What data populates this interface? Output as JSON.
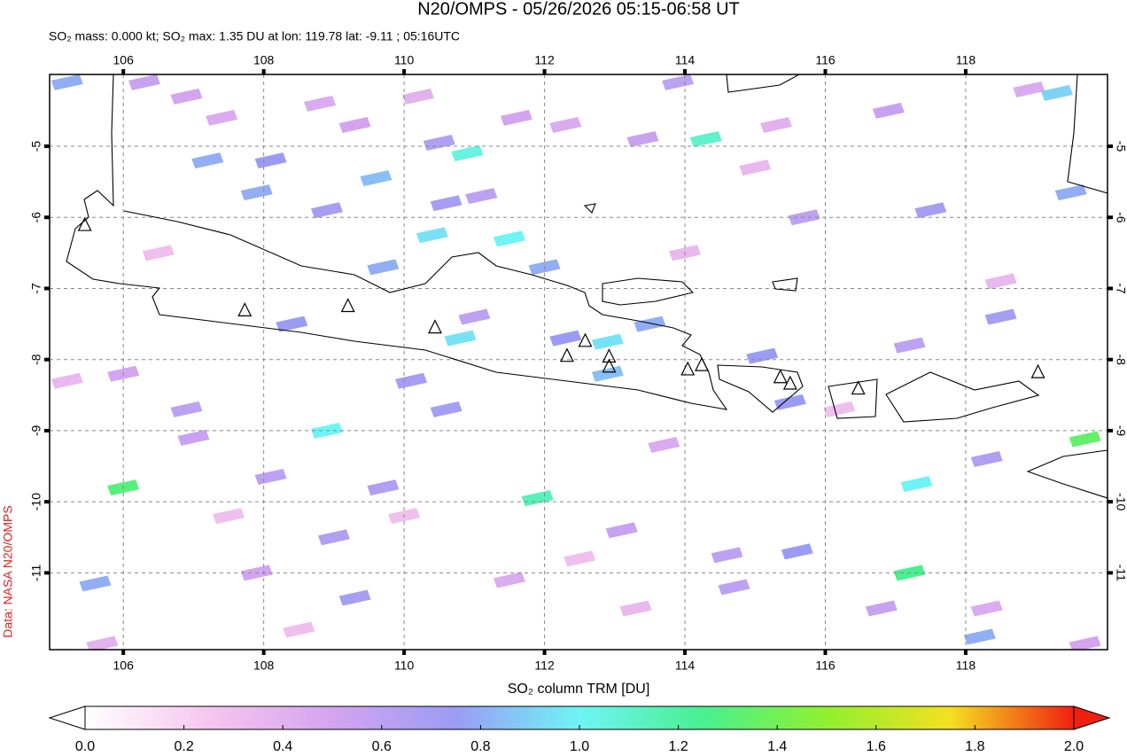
{
  "chart_data": {
    "type": "map",
    "title": "N20/OMPS - 05/26/2026 05:15-06:58 UT",
    "subtitle": "SO₂ mass: 0.000 kt; SO₂ max: 1.35 DU at lon: 119.78 lat: -9.11 ; 05:16UTC",
    "source": "Data: NASA N20/OMPS",
    "colorbar_label": "SO₂ column TRM [DU]",
    "xlim": [
      104.95,
      120.02
    ],
    "ylim": [
      -12.08,
      -3.99
    ],
    "xticks": [
      106,
      108,
      110,
      112,
      114,
      116,
      118
    ],
    "yticks": [
      -5,
      -6,
      -7,
      -8,
      -9,
      -10,
      -11
    ],
    "grid": true,
    "colorbar_lim": [
      0,
      2
    ],
    "colorbar_ticks": [
      {
        "value": 0,
        "label": "0.0"
      },
      0.2,
      0.4,
      0.6,
      0.8,
      {
        "value": 1,
        "label": "1.0"
      },
      1.2,
      1.4,
      1.6,
      1.8,
      {
        "value": 2,
        "label": "2.0"
      }
    ],
    "colormap": [
      "#ffffff",
      "#f6c6ee",
      "#d4a4f0",
      "#9a9cf4",
      "#6ef4f6",
      "#48f090",
      "#90f030",
      "#f4e020",
      "#f02010"
    ],
    "pixels": {
      "lon": [
        105.2,
        106.3,
        106.9,
        107.4,
        108.8,
        109.3,
        110.2,
        110.9,
        110.5,
        111.6,
        112.3,
        113.4,
        114.3,
        113.9,
        115.3,
        116.9,
        118.9,
        119.3,
        107.2,
        108.1,
        109.6,
        107.9,
        108.9,
        110.6,
        111.1,
        110.4,
        111.5,
        109.7,
        112.0,
        115.7,
        117.5,
        119.5,
        108.4,
        110.8,
        111.0,
        112.3,
        112.9,
        113.5,
        112.9,
        110.1,
        106.0,
        110.6,
        115.1,
        115.5,
        117.2,
        118.5,
        106.9,
        108.9,
        106.0,
        107.0,
        109.7,
        111.9,
        108.1,
        113.7,
        117.3,
        118.3,
        119.7,
        105.6,
        109.0,
        113.1,
        114.6,
        115.6,
        117.2,
        116.8,
        118.3,
        114.7,
        105.7,
        107.9,
        109.3,
        111.5,
        118.2,
        119.7,
        105.2,
        106.5,
        107.5,
        112.5,
        114.0,
        116.2,
        118.5,
        108.5,
        113.3,
        110.0,
        115.0
      ],
      "lat": [
        -4.1,
        -4.1,
        -4.3,
        -4.6,
        -4.4,
        -4.7,
        -4.3,
        -5.1,
        -4.95,
        -4.6,
        -4.7,
        -4.9,
        -4.9,
        -4.1,
        -4.7,
        -4.5,
        -4.2,
        -4.25,
        -5.2,
        -5.2,
        -5.45,
        -5.65,
        -5.9,
        -5.8,
        -5.7,
        -6.25,
        -6.3,
        -6.7,
        -6.7,
        -6.0,
        -5.9,
        -5.65,
        -7.5,
        -7.7,
        -7.4,
        -7.7,
        -7.75,
        -7.5,
        -8.2,
        -8.3,
        -8.2,
        -8.7,
        -7.95,
        -8.6,
        -7.8,
        -7.4,
        -8.7,
        -9.0,
        -9.8,
        -9.1,
        -9.8,
        -9.95,
        -9.65,
        -9.2,
        -9.75,
        -9.4,
        -9.12,
        -11.15,
        -10.5,
        -10.4,
        -10.75,
        -10.7,
        -11.0,
        -11.5,
        -11.5,
        -11.2,
        -12.0,
        -11.0,
        -11.35,
        -11.1,
        -11.9,
        -12.0,
        -8.3,
        -6.5,
        -10.2,
        -10.8,
        -6.5,
        -8.7,
        -6.9,
        -11.8,
        -11.5,
        -10.2,
        -5.3
      ],
      "values": [
        0.8,
        0.55,
        0.5,
        0.45,
        0.45,
        0.5,
        0.4,
        1.05,
        0.65,
        0.5,
        0.45,
        0.55,
        1.1,
        0.6,
        0.4,
        0.55,
        0.45,
        0.9,
        0.8,
        0.75,
        0.85,
        0.8,
        0.7,
        0.7,
        0.6,
        0.95,
        1.0,
        0.8,
        0.8,
        0.6,
        0.7,
        0.8,
        0.75,
        0.95,
        0.6,
        0.75,
        0.95,
        0.8,
        0.85,
        0.7,
        0.5,
        0.7,
        0.75,
        0.75,
        0.6,
        0.7,
        0.6,
        1.0,
        1.3,
        0.55,
        0.65,
        1.15,
        0.6,
        0.45,
        1.0,
        0.65,
        1.35,
        0.8,
        0.65,
        0.55,
        0.6,
        0.75,
        1.25,
        0.55,
        0.45,
        0.6,
        0.4,
        0.5,
        0.7,
        0.45,
        0.8,
        0.5,
        0.35,
        0.3,
        0.3,
        0.3,
        0.35,
        0.3,
        0.35,
        0.3,
        0.35,
        0.3,
        0.35
      ]
    },
    "volcanoes": {
      "lon": [
        105.45,
        107.73,
        109.2,
        110.44,
        112.32,
        112.58,
        112.92,
        112.92,
        114.04,
        114.24,
        115.36,
        115.5,
        116.47,
        119.03
      ],
      "lat": [
        -6.11,
        -7.31,
        -7.25,
        -7.55,
        -7.95,
        -7.74,
        -7.96,
        -8.1,
        -8.14,
        -8.08,
        -8.25,
        -8.34,
        -8.41,
        -8.18
      ]
    }
  }
}
